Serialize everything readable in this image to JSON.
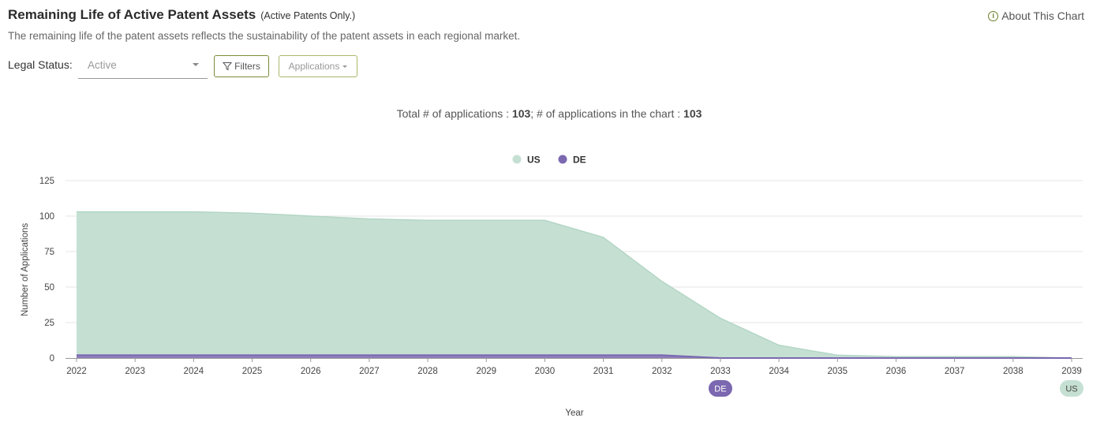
{
  "header": {
    "title": "Remaining Life of Active Patent Assets",
    "subtitle": "(Active Patents Only.)",
    "about_label": "About This Chart",
    "description": "The remaining life of the patent assets reflects the sustainability of the patent assets in each regional market."
  },
  "controls": {
    "legal_status_label": "Legal Status:",
    "legal_status_value": "Active",
    "filters_label": "Filters",
    "applications_label": "Applications"
  },
  "summary": {
    "total_label": "Total # of applications : ",
    "total_value": "103",
    "separator": "; ",
    "in_chart_label": "# of applications in the chart : ",
    "in_chart_value": "103"
  },
  "colors": {
    "us": "#c5e0d3",
    "us_line": "#b3d6c5",
    "de": "#7b68b0",
    "accent": "#7a8c3a"
  },
  "chart_data": {
    "type": "area",
    "stacked": true,
    "x": [
      2022,
      2023,
      2024,
      2025,
      2026,
      2027,
      2028,
      2029,
      2030,
      2031,
      2032,
      2033,
      2034,
      2035,
      2036,
      2037,
      2038,
      2039
    ],
    "series": [
      {
        "name": "DE",
        "values": [
          2,
          2,
          2,
          2,
          2,
          2,
          2,
          2,
          2,
          2,
          2,
          0,
          0,
          0,
          0,
          0,
          0,
          0
        ]
      },
      {
        "name": "US",
        "values": [
          101,
          101,
          101,
          100,
          98,
          96,
          95,
          95,
          95,
          83,
          52,
          28,
          9,
          2,
          1,
          1,
          1,
          0
        ]
      }
    ],
    "xlabel": "Year",
    "ylabel": "Number of Applications",
    "ylim": [
      0,
      125
    ],
    "yticks": [
      0,
      25,
      50,
      75,
      100,
      125
    ],
    "grid": true,
    "legend": "top-center",
    "legend_items": [
      "US",
      "DE"
    ],
    "end_markers": [
      {
        "label": "DE",
        "x": 2033,
        "series": "DE"
      },
      {
        "label": "US",
        "x": 2039,
        "series": "US"
      }
    ]
  }
}
